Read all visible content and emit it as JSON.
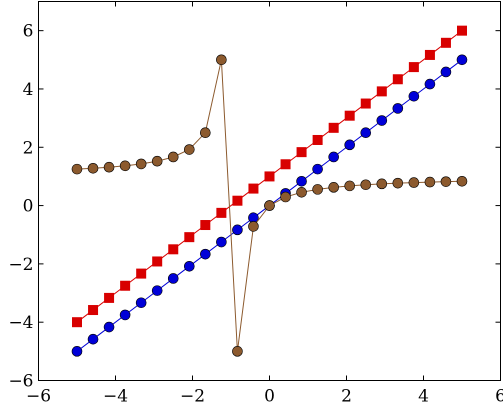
{
  "chart_data": {
    "type": "line",
    "title": "",
    "xlabel": "",
    "ylabel": "",
    "xlim": [
      -6,
      6
    ],
    "ylim": [
      -6,
      7
    ],
    "grid": false,
    "xticks": [
      -6,
      -4,
      -2,
      0,
      2,
      4,
      6
    ],
    "yticks": [
      -6,
      -4,
      -2,
      0,
      2,
      4,
      6
    ],
    "xtick_labels": [
      "−6",
      "−4",
      "−2",
      "0",
      "2",
      "4",
      "6"
    ],
    "ytick_labels": [
      "−6",
      "−4",
      "−2",
      "0",
      "2",
      "4",
      "6"
    ],
    "series": [
      {
        "marker": "circle",
        "color": "#0000d8",
        "x": [
          -5,
          -4.583,
          -4.167,
          -3.75,
          -3.333,
          -2.917,
          -2.5,
          -2.083,
          -1.667,
          -1.25,
          -0.833,
          -0.417,
          0,
          0.417,
          0.833,
          1.25,
          1.667,
          2.083,
          2.5,
          2.917,
          3.333,
          3.75,
          4.167,
          4.583,
          5
        ],
        "y": [
          -5,
          -4.583,
          -4.167,
          -3.75,
          -3.333,
          -2.917,
          -2.5,
          -2.083,
          -1.667,
          -1.25,
          -0.833,
          -0.417,
          0,
          0.417,
          0.833,
          1.25,
          1.667,
          2.083,
          2.5,
          2.917,
          3.333,
          3.75,
          4.167,
          4.583,
          5
        ]
      },
      {
        "marker": "square",
        "color": "#d80000",
        "x": [
          -5,
          -4.583,
          -4.167,
          -3.75,
          -3.333,
          -2.917,
          -2.5,
          -2.083,
          -1.667,
          -1.25,
          -0.833,
          -0.417,
          0,
          0.417,
          0.833,
          1.25,
          1.667,
          2.083,
          2.5,
          2.917,
          3.333,
          3.75,
          4.167,
          4.583,
          5
        ],
        "y": [
          -4,
          -3.583,
          -3.167,
          -2.75,
          -2.333,
          -1.917,
          -1.5,
          -1.083,
          -0.667,
          -0.25,
          0.167,
          0.583,
          1,
          1.417,
          1.833,
          2.25,
          2.667,
          3.083,
          3.5,
          3.917,
          4.333,
          4.75,
          5.167,
          5.583,
          6
        ]
      },
      {
        "marker": "circle",
        "color": "#8c5a2e",
        "x": [
          -5,
          -4.583,
          -4.167,
          -3.75,
          -3.333,
          -2.917,
          -2.5,
          -2.083,
          -1.667,
          -1.25,
          -0.833,
          -0.417,
          0,
          0.417,
          0.833,
          1.25,
          1.667,
          2.083,
          2.5,
          2.917,
          3.333,
          3.75,
          4.167,
          4.583,
          5
        ],
        "y": [
          1.25,
          1.279,
          1.316,
          1.364,
          1.429,
          1.522,
          1.667,
          1.923,
          2.5,
          5,
          -5,
          -0.714,
          0,
          0.294,
          0.455,
          0.556,
          0.625,
          0.676,
          0.714,
          0.745,
          0.769,
          0.789,
          0.806,
          0.821,
          0.833
        ]
      }
    ]
  }
}
